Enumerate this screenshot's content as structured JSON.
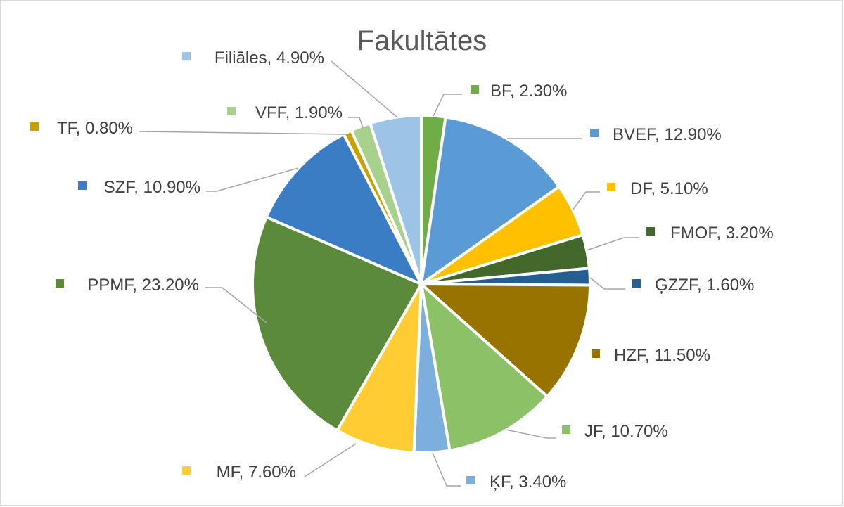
{
  "chart_data": {
    "type": "pie",
    "title": "Fakultātes",
    "slices": [
      {
        "name": "BF",
        "value": 2.3,
        "label": "BF, 2.30%",
        "color": "#70ad47"
      },
      {
        "name": "BVEF",
        "value": 12.9,
        "label": "BVEF, 12.90%",
        "color": "#5b9bd5"
      },
      {
        "name": "DF",
        "value": 5.1,
        "label": "DF, 5.10%",
        "color": "#ffc000"
      },
      {
        "name": "FMOF",
        "value": 3.2,
        "label": "FMOF, 3.20%",
        "color": "#43682b"
      },
      {
        "name": "ĢZZF",
        "value": 1.6,
        "label": "ĢZZF, 1.60%",
        "color": "#255e91"
      },
      {
        "name": "HZF",
        "value": 11.5,
        "label": "HZF, 11.50%",
        "color": "#997300"
      },
      {
        "name": "JF",
        "value": 10.7,
        "label": "JF, 10.70%",
        "color": "#8cc168"
      },
      {
        "name": "ĶF",
        "value": 3.4,
        "label": "ĶF, 3.40%",
        "color": "#7cafdd"
      },
      {
        "name": "MF",
        "value": 7.6,
        "label": "MF, 7.60%",
        "color": "#ffcd33"
      },
      {
        "name": "PPMF",
        "value": 23.2,
        "label": "PPMF, 23.20%",
        "color": "#5a8a3a"
      },
      {
        "name": "SZF",
        "value": 10.9,
        "label": "SZF, 10.90%",
        "color": "#3a7dc4"
      },
      {
        "name": "TF",
        "value": 0.8,
        "label": "TF, 0.80%",
        "color": "#c9a000"
      },
      {
        "name": "VFF",
        "value": 1.9,
        "label": "VFF, 1.90%",
        "color": "#a9d18e"
      },
      {
        "name": "Filiāles",
        "value": 4.9,
        "label": "Filiāles, 4.90%",
        "color": "#9dc3e6"
      }
    ]
  }
}
